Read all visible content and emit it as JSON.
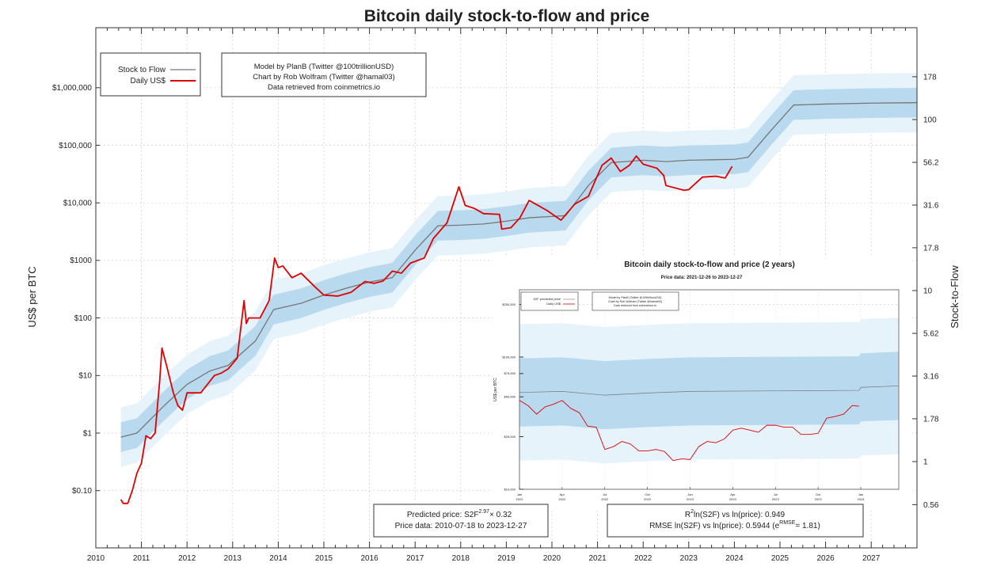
{
  "chart_data": [
    {
      "type": "line",
      "title": "Bitcoin daily stock-to-flow and price",
      "ylabel": "US$ per BTC",
      "y2label": "Stock-to-Flow",
      "yscale": "log",
      "xlim": [
        2010,
        2028
      ],
      "ylim": [
        0.01,
        11000000
      ],
      "grid": true,
      "x_ticks": [
        "2010",
        "2011",
        "2012",
        "2013",
        "2014",
        "2015",
        "2016",
        "2017",
        "2018",
        "2019",
        "2020",
        "2021",
        "2022",
        "2023",
        "2024",
        "2025",
        "2026",
        "2027"
      ],
      "y_ticks": [
        {
          "v": 0.1,
          "label": "$0.10"
        },
        {
          "v": 1,
          "label": "$1"
        },
        {
          "v": 10,
          "label": "$10"
        },
        {
          "v": 100,
          "label": "$100"
        },
        {
          "v": 1000,
          "label": "$1000"
        },
        {
          "v": 10000,
          "label": "$10,000"
        },
        {
          "v": 100000,
          "label": "$100,000"
        },
        {
          "v": 1000000,
          "label": "$1,000,000"
        }
      ],
      "y2_ticks": [
        {
          "v": 0.56,
          "label": "0.56"
        },
        {
          "v": 1,
          "label": "1"
        },
        {
          "v": 1.78,
          "label": "1.78"
        },
        {
          "v": 3.16,
          "label": "3.16"
        },
        {
          "v": 5.62,
          "label": "5.62"
        },
        {
          "v": 10,
          "label": "10"
        },
        {
          "v": 17.8,
          "label": "17.8"
        },
        {
          "v": 31.6,
          "label": "31.6"
        },
        {
          "v": 56.2,
          "label": "56.2"
        },
        {
          "v": 100,
          "label": "100"
        },
        {
          "v": 178,
          "label": "178"
        }
      ],
      "legend": {
        "placement": "top-left",
        "entries": [
          {
            "name": "Stock to Flow",
            "color": "#777777"
          },
          {
            "name": "Daily US$",
            "color": "#e00000"
          }
        ]
      },
      "credits": [
        "Model by PlanB (Twitter @100trillionUSD)",
        "Chart by Rob Wolfram (Twitter @hamal03)",
        "Data retrieved from coinmetrics.io"
      ],
      "band_colors": {
        "inner": "#b9d9ee",
        "outer": "#e6f3fb"
      },
      "band_factor_inner": 1.81,
      "band_factor_outer": 3.28,
      "series": [
        {
          "name": "Stock to Flow",
          "color": "#777777",
          "x": [
            2010.55,
            2010.9,
            2011.5,
            2012.0,
            2012.5,
            2012.9,
            2013.5,
            2013.9,
            2014.5,
            2015.0,
            2015.5,
            2016.0,
            2016.5,
            2017.0,
            2017.5,
            2018.0,
            2018.5,
            2019.0,
            2019.5,
            2020.0,
            2020.3,
            2020.8,
            2021.3,
            2022.0,
            2022.5,
            2023.0,
            2023.5,
            2024.0,
            2024.3,
            2024.8,
            2025.3,
            2026.0,
            2027.0,
            2028.0
          ],
          "y": [
            0.85,
            1.0,
            3,
            7,
            12,
            15,
            40,
            140,
            180,
            250,
            330,
            420,
            500,
            1500,
            4000,
            4100,
            4300,
            4800,
            5500,
            5800,
            6000,
            20000,
            50000,
            55000,
            52000,
            55000,
            56000,
            57000,
            62000,
            180000,
            500000,
            520000,
            540000,
            550000
          ]
        },
        {
          "name": "Daily US$",
          "color": "#e00000",
          "x": [
            2010.55,
            2010.6,
            2010.7,
            2010.8,
            2010.9,
            2011.0,
            2011.1,
            2011.2,
            2011.3,
            2011.4,
            2011.45,
            2011.55,
            2011.7,
            2011.8,
            2011.9,
            2012.0,
            2012.3,
            2012.6,
            2012.75,
            2012.9,
            2013.1,
            2013.25,
            2013.3,
            2013.35,
            2013.6,
            2013.8,
            2013.92,
            2014.0,
            2014.1,
            2014.3,
            2014.5,
            2014.8,
            2015.0,
            2015.3,
            2015.6,
            2015.9,
            2016.1,
            2016.3,
            2016.5,
            2016.7,
            2016.9,
            2017.2,
            2017.4,
            2017.7,
            2017.96,
            2018.1,
            2018.3,
            2018.5,
            2018.85,
            2018.9,
            2019.1,
            2019.3,
            2019.5,
            2019.7,
            2019.9,
            2020.2,
            2020.5,
            2020.8,
            2021.0,
            2021.1,
            2021.3,
            2021.5,
            2021.7,
            2021.85,
            2022.0,
            2022.3,
            2022.45,
            2022.5,
            2022.9,
            2023.0,
            2023.3,
            2023.6,
            2023.8,
            2023.95
          ],
          "y": [
            0.07,
            0.06,
            0.06,
            0.1,
            0.2,
            0.3,
            0.9,
            0.8,
            1.0,
            8,
            30,
            15,
            5,
            3,
            2.5,
            5,
            5,
            10,
            11,
            13,
            20,
            200,
            80,
            100,
            100,
            200,
            1100,
            750,
            800,
            500,
            600,
            350,
            250,
            240,
            280,
            430,
            400,
            440,
            650,
            600,
            900,
            1100,
            2400,
            4500,
            19000,
            9000,
            8000,
            6500,
            6300,
            3500,
            3700,
            5500,
            11000,
            9000,
            7300,
            5000,
            9500,
            13000,
            30000,
            45000,
            60000,
            35000,
            45000,
            65000,
            47000,
            40000,
            30000,
            20000,
            16500,
            17000,
            28000,
            29000,
            27000,
            43000
          ]
        }
      ],
      "annotations": {
        "predicted_prefix": "Predicted price: S2F",
        "predicted_exp": "2.97",
        "predicted_suffix": "× 0.32",
        "price_range": "Price data: 2010-07-18 to 2023-12-27",
        "r2_prefix": "R",
        "r2_sup": "2",
        "r2_suffix": "ln(S2F) vs ln(price): 0.949",
        "rmse_prefix": "RMSE ln(S2F) vs ln(price): 0.5944 (e",
        "rmse_sup": "RMSE",
        "rmse_suffix": "= 1.81)"
      }
    },
    {
      "type": "line",
      "title": "Bitcoin daily stock-to-flow and price (2 years)",
      "subtitle": "Price data: 2021-12-26 to 2023-12-27",
      "ylabel": "US$ per BTC",
      "yscale": "log",
      "xlim": [
        2022.0,
        2024.22
      ],
      "ylim": [
        10000,
        300000
      ],
      "y_ticks": [
        {
          "v": 10000,
          "label": "$10,000"
        },
        {
          "v": 25000,
          "label": "$25,000"
        },
        {
          "v": 50000,
          "label": "$50,000"
        },
        {
          "v": 75000,
          "label": "$75,000"
        },
        {
          "v": 100000,
          "label": "$100,000"
        },
        {
          "v": 250000,
          "label": "$250,000"
        }
      ],
      "x_ticks": [
        {
          "v": 2022.0,
          "m": "Jan",
          "y": "2022"
        },
        {
          "v": 2022.25,
          "m": "Apr",
          "y": "2022"
        },
        {
          "v": 2022.5,
          "m": "Jul",
          "y": "2022"
        },
        {
          "v": 2022.75,
          "m": "Oct",
          "y": "2022"
        },
        {
          "v": 2023.0,
          "m": "Jan",
          "y": "2023"
        },
        {
          "v": 2023.25,
          "m": "Apr",
          "y": "2023"
        },
        {
          "v": 2023.5,
          "m": "Jul",
          "y": "2023"
        },
        {
          "v": 2023.75,
          "m": "Oct",
          "y": "2023"
        },
        {
          "v": 2024.0,
          "m": "Jan",
          "y": "2024"
        }
      ],
      "legend": {
        "entries": [
          {
            "name": "S2F predicted price",
            "color": "#777777"
          },
          {
            "name": "Daily US$",
            "color": "#e00000"
          }
        ]
      },
      "credits": [
        "Model by PlanB (Twitter @100trillionUSD)",
        "Chart by Rob Wolfram (Twitter @hamal03)",
        "Data retrieved from coinmetrics.io"
      ],
      "series": [
        {
          "name": "S2F predicted price",
          "color": "#777777",
          "x": [
            2022.0,
            2022.25,
            2022.5,
            2022.75,
            2023.0,
            2023.5,
            2023.99,
            2024.0,
            2024.22
          ],
          "y": [
            54000,
            55000,
            51500,
            53500,
            55000,
            55500,
            56000,
            59000,
            60500
          ]
        },
        {
          "name": "Daily US$",
          "color": "#e00000",
          "x": [
            2022.0,
            2022.05,
            2022.1,
            2022.15,
            2022.2,
            2022.25,
            2022.3,
            2022.35,
            2022.4,
            2022.45,
            2022.5,
            2022.55,
            2022.6,
            2022.65,
            2022.7,
            2022.75,
            2022.8,
            2022.85,
            2022.9,
            2022.95,
            2023.0,
            2023.05,
            2023.1,
            2023.15,
            2023.2,
            2023.25,
            2023.3,
            2023.35,
            2023.4,
            2023.45,
            2023.5,
            2023.55,
            2023.6,
            2023.65,
            2023.7,
            2023.75,
            2023.8,
            2023.85,
            2023.9,
            2023.95,
            2023.99
          ],
          "y": [
            47000,
            43000,
            37000,
            42000,
            44000,
            47000,
            41000,
            38000,
            30000,
            29500,
            20000,
            21000,
            23000,
            22000,
            19500,
            19500,
            20000,
            19300,
            16500,
            17000,
            16800,
            21000,
            23000,
            22500,
            24000,
            28000,
            29000,
            28000,
            27000,
            30500,
            30500,
            29500,
            29500,
            26000,
            26000,
            26500,
            34500,
            35500,
            37000,
            43000,
            42500
          ]
        }
      ]
    }
  ]
}
